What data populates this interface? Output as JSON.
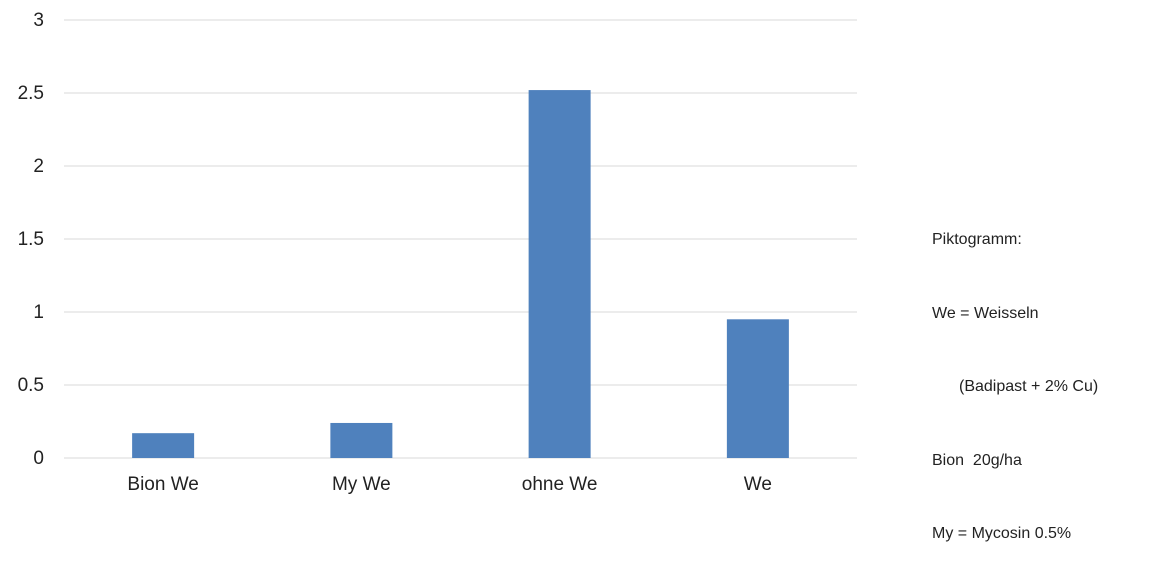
{
  "chart_data": {
    "type": "bar",
    "categories": [
      "Bion We",
      "My We",
      "ohne We",
      "We"
    ],
    "values": [
      0.17,
      0.24,
      2.52,
      0.95
    ],
    "yticks": [
      "0",
      "0.5",
      "1",
      "1.5",
      "2",
      "2.5",
      "3"
    ],
    "ylim": [
      0,
      3
    ],
    "grid": true,
    "bar_color": "#4F81BD",
    "grid_color": "#D9D9D9"
  },
  "legend_text": {
    "title": "Piktogramm:",
    "line1": "We = Weisseln",
    "line2": "(Badipast + 2% Cu)",
    "line3": "Bion  20g/ha",
    "line4": "My = Mycosin 0.5%"
  }
}
